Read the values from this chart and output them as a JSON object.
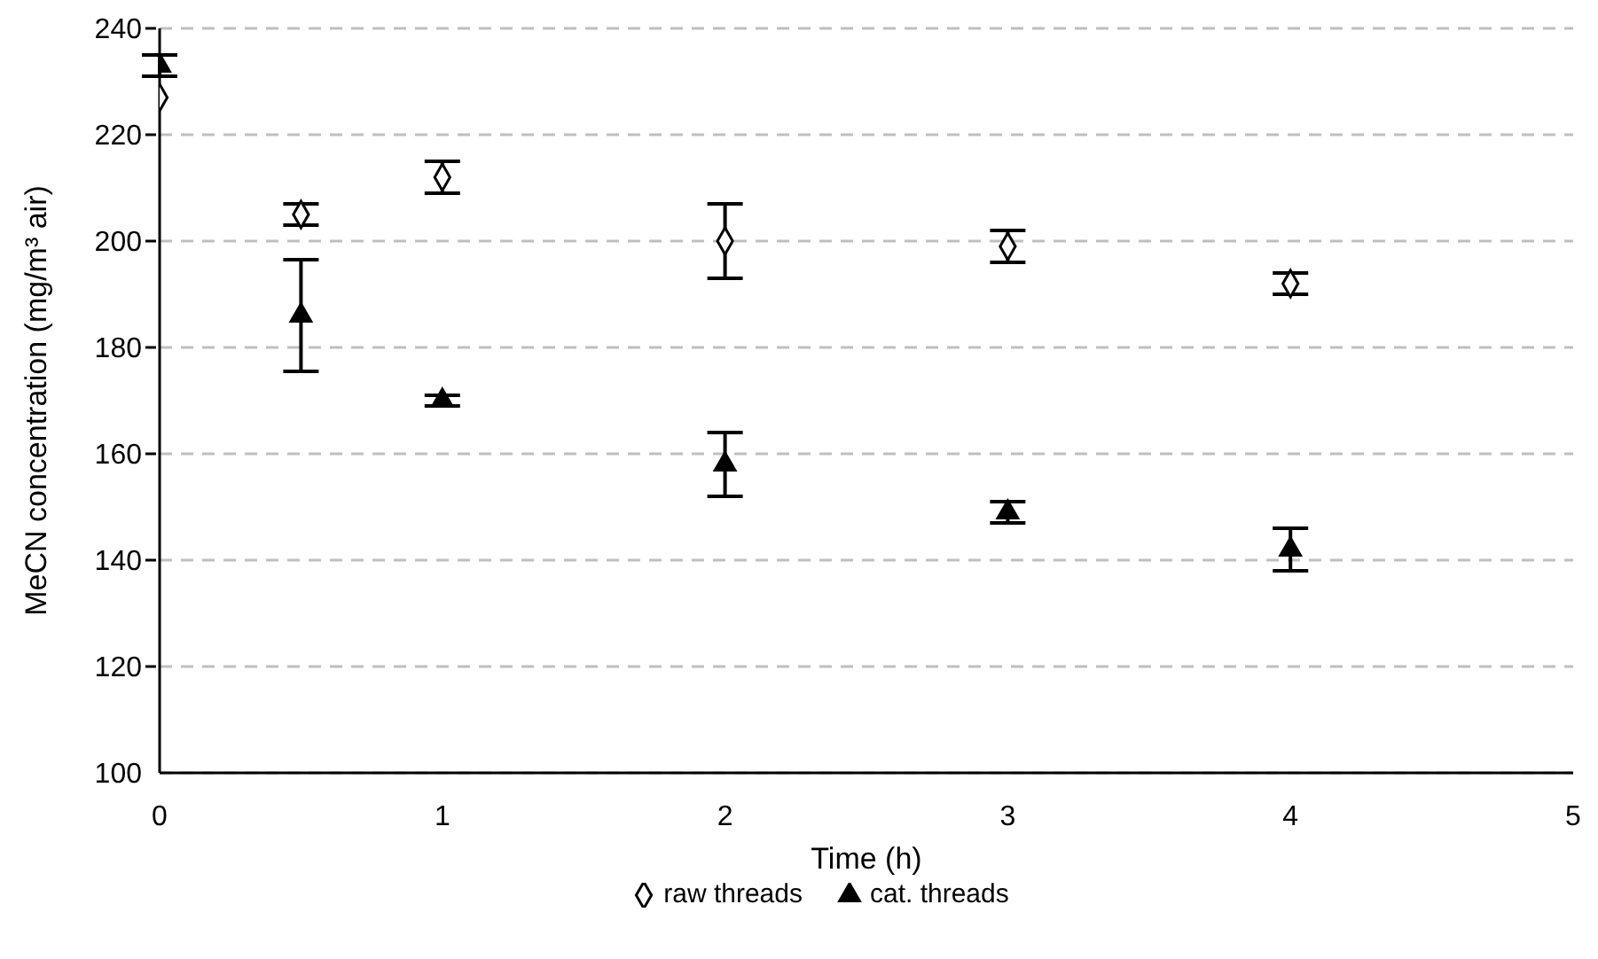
{
  "chart_data": {
    "type": "scatter",
    "xlabel": "Time (h)",
    "ylabel": "MeCN concentration (mg/m³ air)",
    "x": [
      0,
      0.5,
      1,
      2,
      3,
      4
    ],
    "series": [
      {
        "name": "raw threads",
        "color": "#000000",
        "marker": "diamond",
        "values": [
          227,
          205,
          212,
          200,
          199,
          192
        ],
        "errors": [
          null,
          2,
          3,
          7,
          3,
          2
        ]
      },
      {
        "name": "cat. threads",
        "color": "#000000",
        "marker": "triangle",
        "values": [
          233,
          186,
          170,
          158,
          149,
          142
        ],
        "errors": [
          2,
          10.5,
          1,
          6,
          2,
          4
        ]
      }
    ],
    "xlim": [
      0,
      5
    ],
    "xticks": [
      0,
      1,
      2,
      3,
      4,
      5
    ],
    "ylim": [
      100,
      240
    ],
    "yticks": [
      100,
      120,
      140,
      160,
      180,
      200,
      220,
      240
    ],
    "grid": "y",
    "legend": "bottom"
  }
}
